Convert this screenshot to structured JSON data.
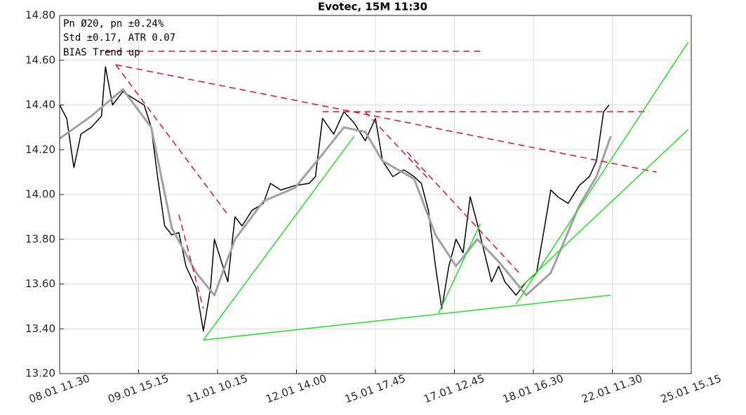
{
  "chart_data": {
    "type": "line",
    "title": "Evotec, 15M 11:30",
    "annotations": [
      "Pn  Ø20, pn ±0.24%",
      "Std ±0.17, ATR 0.07",
      "BIAS Trend up"
    ],
    "xlim": [
      0,
      8
    ],
    "xticks": [
      {
        "value": 0,
        "label": "08.01 11.30"
      },
      {
        "value": 1,
        "label": "09.01 15.15"
      },
      {
        "value": 2,
        "label": "11.01 10.15"
      },
      {
        "value": 3,
        "label": "12.01 14.00"
      },
      {
        "value": 4,
        "label": "15.01 17.45"
      },
      {
        "value": 5,
        "label": "17.01 12.45"
      },
      {
        "value": 6,
        "label": "18.01 16.30"
      },
      {
        "value": 7,
        "label": "22.01 11.30"
      },
      {
        "value": 8,
        "label": "25.01 15.15"
      }
    ],
    "ylim": [
      13.2,
      14.8
    ],
    "yticks": [
      {
        "value": 13.2,
        "label": "13.20"
      },
      {
        "value": 13.4,
        "label": "13.40"
      },
      {
        "value": 13.6,
        "label": "13.60"
      },
      {
        "value": 13.8,
        "label": "13.80"
      },
      {
        "value": 14.0,
        "label": "14.00"
      },
      {
        "value": 14.2,
        "label": "14.20"
      },
      {
        "value": 14.4,
        "label": "14.40"
      },
      {
        "value": 14.6,
        "label": "14.60"
      },
      {
        "value": 14.8,
        "label": "14.80"
      }
    ],
    "grid": true,
    "series": [
      {
        "color": "#000000",
        "style": "solid",
        "width": 1.5,
        "x": [
          0,
          0.09,
          0.18,
          0.27,
          0.4,
          0.53,
          0.58,
          0.67,
          0.8,
          0.93,
          1.07,
          1.16,
          1.24,
          1.33,
          1.42,
          1.51,
          1.6,
          1.73,
          1.82,
          1.91,
          1.96,
          2.04,
          2.13,
          2.22,
          2.31,
          2.44,
          2.58,
          2.67,
          2.8,
          2.98,
          3.16,
          3.24,
          3.33,
          3.47,
          3.6,
          3.73,
          3.87,
          4.0,
          4.09,
          4.22,
          4.36,
          4.49,
          4.58,
          4.67,
          4.76,
          4.84,
          4.93,
          5.02,
          5.11,
          5.2,
          5.29,
          5.38,
          5.47,
          5.56,
          5.64,
          5.78,
          5.91,
          6.04,
          6.13,
          6.22,
          6.31,
          6.44,
          6.58,
          6.71,
          6.8,
          6.89,
          6.96
        ],
        "values": [
          14.4,
          14.34,
          14.12,
          14.27,
          14.3,
          14.35,
          14.57,
          14.4,
          14.46,
          14.43,
          14.4,
          14.3,
          14.08,
          13.86,
          13.82,
          13.83,
          13.68,
          13.58,
          13.39,
          13.58,
          13.8,
          13.71,
          13.61,
          13.9,
          13.86,
          13.93,
          13.96,
          14.05,
          14.02,
          14.04,
          14.05,
          14.08,
          14.34,
          14.27,
          14.37,
          14.32,
          14.24,
          14.34,
          14.15,
          14.08,
          14.11,
          14.08,
          14.05,
          13.93,
          13.68,
          13.49,
          13.68,
          13.8,
          13.74,
          13.99,
          13.87,
          13.74,
          13.61,
          13.68,
          13.61,
          13.55,
          13.61,
          13.65,
          13.83,
          14.02,
          13.99,
          13.96,
          14.04,
          14.08,
          14.15,
          14.37,
          14.4
        ]
      },
      {
        "color": "#a0a0a0",
        "style": "solid",
        "width": 3,
        "x": [
          0,
          0.4,
          0.8,
          1.16,
          1.42,
          1.73,
          1.96,
          2.22,
          2.58,
          2.98,
          3.33,
          3.6,
          3.87,
          4.09,
          4.49,
          4.76,
          5.02,
          5.29,
          5.56,
          5.91,
          6.22,
          6.58,
          6.8,
          6.98
        ],
        "values": [
          14.25,
          14.35,
          14.47,
          14.3,
          13.85,
          13.65,
          13.55,
          13.8,
          13.97,
          14.03,
          14.18,
          14.3,
          14.28,
          14.15,
          14.07,
          13.82,
          13.68,
          13.8,
          13.7,
          13.55,
          13.65,
          13.95,
          14.08,
          14.26
        ]
      },
      {
        "color": "#e0102c",
        "style": "dashed",
        "width": 1.5,
        "x": [
          0.58,
          5.38
        ],
        "values": [
          14.64,
          14.64
        ]
      },
      {
        "color": "#e0102c",
        "style": "dashed",
        "width": 1.5,
        "x": [
          0.71,
          7.56
        ],
        "values": [
          14.58,
          14.1
        ]
      },
      {
        "color": "#e0102c",
        "style": "dashed",
        "width": 1.5,
        "x": [
          0.71,
          2.13
        ],
        "values": [
          14.58,
          13.91
        ]
      },
      {
        "color": "#e0102c",
        "style": "dashed",
        "width": 1.5,
        "x": [
          1.51,
          1.82
        ],
        "values": [
          13.91,
          13.49
        ]
      },
      {
        "color": "#e0102c",
        "style": "dashed",
        "width": 1.5,
        "x": [
          3.33,
          7.47
        ],
        "values": [
          14.37,
          14.37
        ]
      },
      {
        "color": "#e0102c",
        "style": "dashed",
        "width": 1.5,
        "x": [
          3.87,
          4.67
        ],
        "values": [
          14.37,
          14.07
        ]
      },
      {
        "color": "#e0102c",
        "style": "dashed",
        "width": 1.5,
        "x": [
          4.4,
          5.82
        ],
        "values": [
          14.19,
          13.65
        ]
      },
      {
        "color": "#22e022",
        "style": "solid",
        "width": 1.5,
        "x": [
          1.82,
          3.73
        ],
        "values": [
          13.35,
          14.26
        ]
      },
      {
        "color": "#22e022",
        "style": "solid",
        "width": 1.5,
        "x": [
          1.82,
          6.98
        ],
        "values": [
          13.35,
          13.55
        ]
      },
      {
        "color": "#22e022",
        "style": "solid",
        "width": 1.5,
        "x": [
          4.8,
          5.33
        ],
        "values": [
          13.47,
          13.87
        ]
      },
      {
        "color": "#22e022",
        "style": "solid",
        "width": 1.5,
        "x": [
          5.78,
          7.96
        ],
        "values": [
          13.51,
          14.68
        ]
      },
      {
        "color": "#22e022",
        "style": "solid",
        "width": 1.5,
        "x": [
          5.82,
          7.96
        ],
        "values": [
          13.58,
          14.29
        ]
      }
    ]
  }
}
